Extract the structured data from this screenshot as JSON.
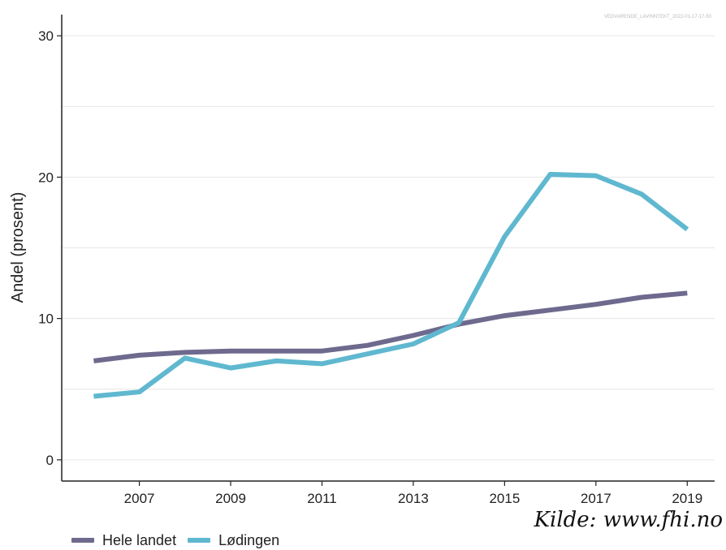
{
  "watermark": "VEDVARENDE_LAVINNTEKT_2022-01-17-17-50",
  "source": "Kilde: www.fhi.no",
  "chart_data": {
    "type": "line",
    "ylabel": "Andel (prosent)",
    "xlabel": "",
    "xlim": [
      2005.3,
      2019.6
    ],
    "ylim": [
      -1.5,
      31.5
    ],
    "x_ticks": [
      2007,
      2009,
      2011,
      2013,
      2015,
      2017,
      2019
    ],
    "y_ticks": [
      0,
      10,
      20,
      30
    ],
    "grid": true,
    "legend_position": "bottom-left",
    "x": [
      2006,
      2007,
      2008,
      2009,
      2010,
      2011,
      2012,
      2013,
      2014,
      2015,
      2016,
      2017,
      2018,
      2019
    ],
    "series": [
      {
        "name": "Hele landet",
        "color": "#6e6a8e",
        "values": [
          7.0,
          7.4,
          7.6,
          7.7,
          7.7,
          7.7,
          8.1,
          8.8,
          9.6,
          10.2,
          10.6,
          11.0,
          11.5,
          11.8
        ]
      },
      {
        "name": "Lødingen",
        "color": "#5fb8cf",
        "values": [
          4.5,
          4.8,
          7.2,
          6.5,
          7.0,
          6.8,
          7.5,
          8.2,
          9.7,
          15.8,
          20.2,
          20.1,
          18.8,
          16.3
        ]
      }
    ]
  }
}
